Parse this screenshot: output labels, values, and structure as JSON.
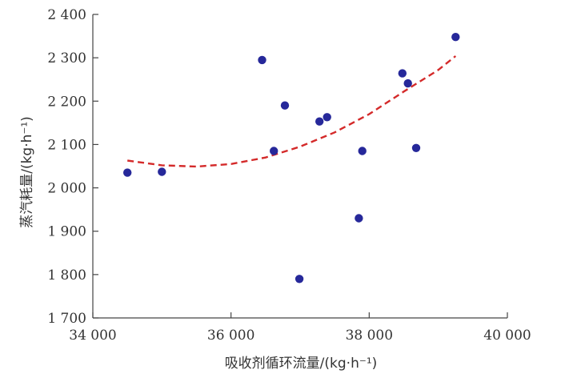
{
  "chart_data": {
    "type": "scatter",
    "xlabel": "吸收剂循环流量/(kg·h⁻¹)",
    "ylabel": "蒸汽耗量/(kg·h⁻¹)",
    "xlim": [
      34000,
      40000
    ],
    "ylim": [
      1700,
      2400
    ],
    "x_ticks": [
      34000,
      36000,
      38000,
      40000
    ],
    "x_tick_labels": [
      "34 000",
      "36 000",
      "38 000",
      "40 000"
    ],
    "y_ticks": [
      1700,
      1800,
      1900,
      2000,
      2100,
      2200,
      2300,
      2400
    ],
    "y_tick_labels": [
      "1 700",
      "1 800",
      "1 900",
      "2 000",
      "2 100",
      "2 200",
      "2 300",
      "2 400"
    ],
    "grid": false,
    "series": [
      {
        "type": "scatter",
        "color": "#26289a",
        "points": [
          [
            34500,
            2035
          ],
          [
            35000,
            2037
          ],
          [
            36450,
            2295
          ],
          [
            36620,
            2085
          ],
          [
            36780,
            2190
          ],
          [
            36990,
            1790
          ],
          [
            37280,
            2153
          ],
          [
            37390,
            2163
          ],
          [
            37850,
            1930
          ],
          [
            37900,
            2085
          ],
          [
            38480,
            2264
          ],
          [
            38560,
            2241
          ],
          [
            38680,
            2092
          ],
          [
            39250,
            2348
          ]
        ]
      },
      {
        "type": "line",
        "style": "dashed",
        "color": "#d42a2a",
        "points": [
          [
            34500,
            2063
          ],
          [
            35000,
            2052
          ],
          [
            35500,
            2049
          ],
          [
            36000,
            2055
          ],
          [
            36500,
            2070
          ],
          [
            37000,
            2095
          ],
          [
            37500,
            2128
          ],
          [
            38000,
            2170
          ],
          [
            38500,
            2222
          ],
          [
            39000,
            2272
          ],
          [
            39250,
            2304
          ]
        ]
      }
    ]
  }
}
